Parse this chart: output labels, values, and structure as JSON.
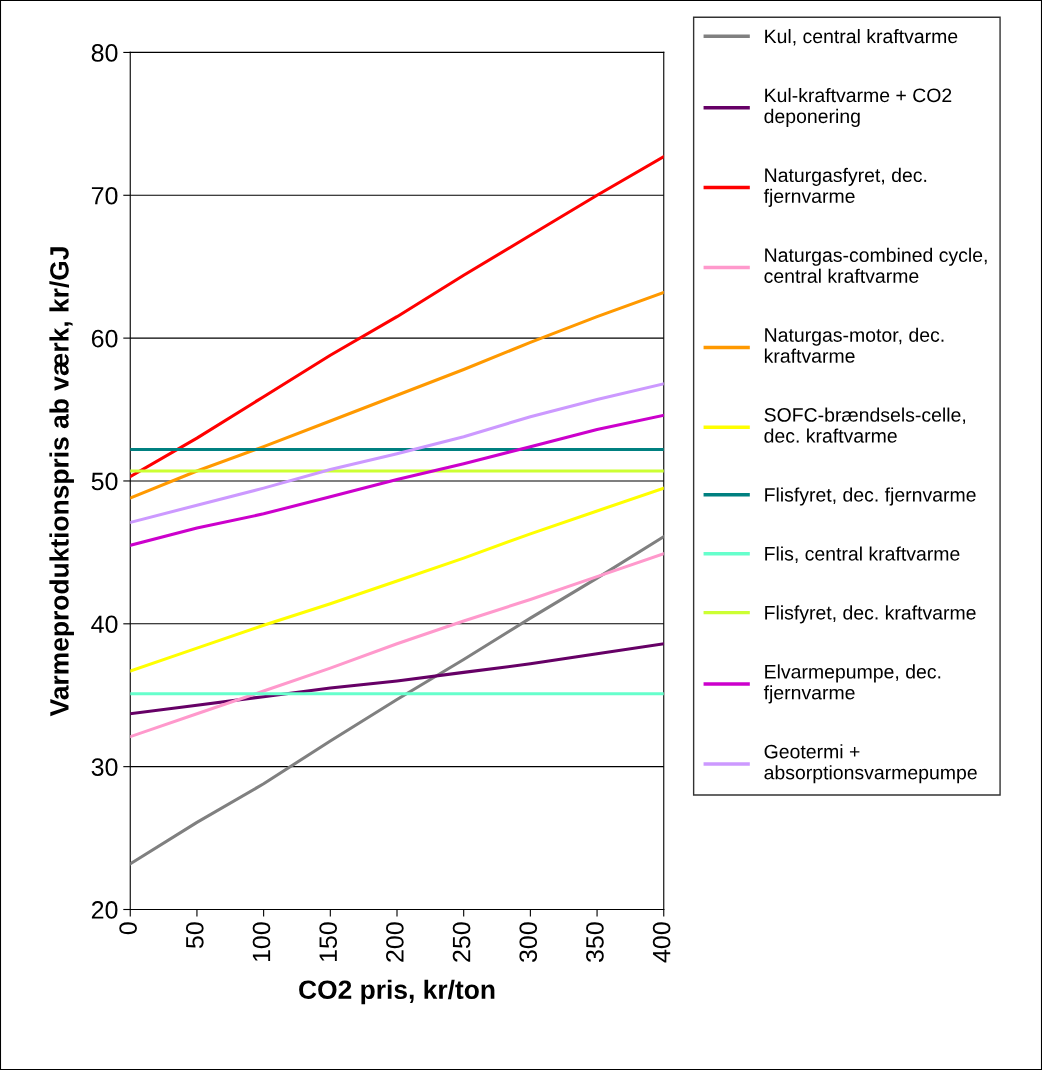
{
  "chart_data": {
    "type": "line",
    "xlabel": "CO2 pris, kr/ton",
    "ylabel": "Varmeproduktionspris ab værk, kr/GJ",
    "x": [
      0,
      50,
      100,
      150,
      200,
      250,
      300,
      350,
      400
    ],
    "xlim": [
      0,
      400
    ],
    "xticks": [
      0,
      50,
      100,
      150,
      200,
      250,
      300,
      350,
      400
    ],
    "ylim": [
      20,
      80
    ],
    "yticks": [
      20,
      30,
      40,
      50,
      60,
      70,
      80
    ],
    "grid": "y",
    "legend": "right",
    "marker": "none",
    "line_style": "solid",
    "series": [
      {
        "name": "Kul, central kraftvarme",
        "color": "#808080",
        "values": [
          23.2,
          26.1,
          28.8,
          31.8,
          34.7,
          37.5,
          40.4,
          43.2,
          46.1
        ]
      },
      {
        "name": "Kul-kraftvarme + CO2\ndeponering",
        "color": "#660066",
        "values": [
          33.7,
          34.3,
          34.9,
          35.5,
          36.0,
          36.6,
          37.2,
          37.9,
          38.6
        ]
      },
      {
        "name": "Naturgasfyret, dec.\nfjernvarme",
        "color": "#ff0000",
        "values": [
          50.3,
          53.0,
          55.9,
          58.8,
          61.5,
          64.4,
          67.2,
          70.0,
          72.7
        ]
      },
      {
        "name": "Naturgas-combined cycle,\ncentral kraftvarme",
        "color": "#ff99cc",
        "values": [
          32.1,
          33.7,
          35.3,
          36.9,
          38.6,
          40.2,
          41.7,
          43.3,
          44.9
        ]
      },
      {
        "name": "Naturgas-motor, dec.\nkraftvarme",
        "color": "#ff9900",
        "values": [
          48.8,
          50.7,
          52.4,
          54.2,
          56.0,
          57.8,
          59.7,
          61.5,
          63.2
        ]
      },
      {
        "name": "SOFC-brændsels-celle,\ndec. kraftvarme",
        "color": "#ffff00",
        "values": [
          36.7,
          38.3,
          39.9,
          41.4,
          43.0,
          44.6,
          46.3,
          47.9,
          49.5
        ]
      },
      {
        "name": "Flisfyret, dec. fjernvarme",
        "color": "#008080",
        "values": [
          52.2,
          52.2,
          52.2,
          52.2,
          52.2,
          52.2,
          52.2,
          52.2,
          52.2
        ]
      },
      {
        "name": "Flis, central kraftvarme",
        "color": "#66ffcc",
        "values": [
          35.1,
          35.1,
          35.1,
          35.1,
          35.1,
          35.1,
          35.1,
          35.1,
          35.1
        ]
      },
      {
        "name": "Flisfyret, dec. kraftvarme",
        "color": "#ccff33",
        "values": [
          50.7,
          50.7,
          50.7,
          50.7,
          50.7,
          50.7,
          50.7,
          50.7,
          50.7
        ]
      },
      {
        "name": "Elvarmepumpe, dec.\nfjernvarme",
        "color": "#cc00cc",
        "values": [
          45.5,
          46.7,
          47.7,
          48.9,
          50.1,
          51.2,
          52.4,
          53.6,
          54.6
        ]
      },
      {
        "name": "Geotermi +\nabsorptionsvarmepumpe",
        "color": "#cc99ff",
        "values": [
          47.1,
          48.3,
          49.5,
          50.8,
          51.9,
          53.1,
          54.5,
          55.7,
          56.8
        ]
      }
    ]
  }
}
